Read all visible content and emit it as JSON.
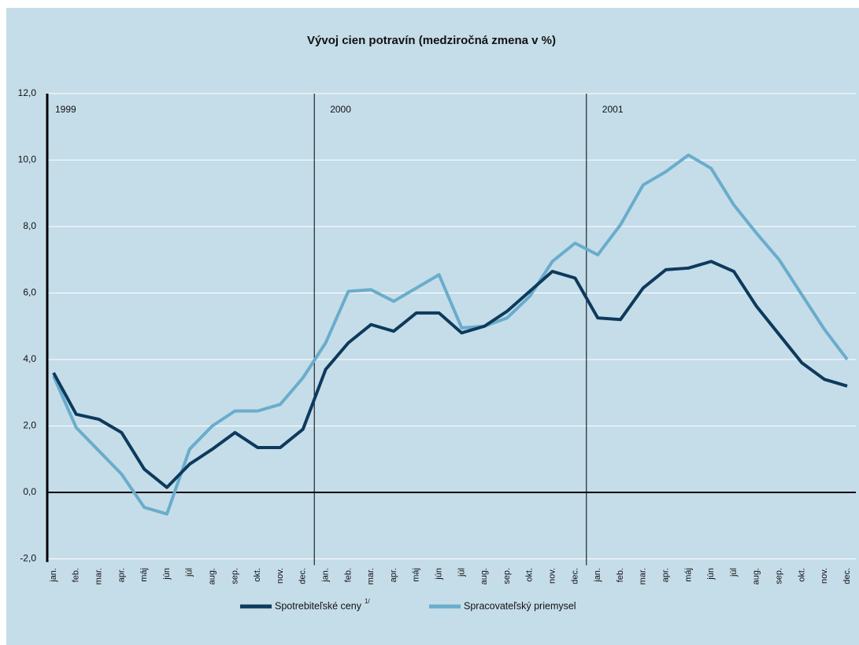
{
  "chart_data": {
    "type": "line",
    "title": "Vývoj cien potravín (medziročná zmena v %)",
    "categories": [
      "jan.",
      "feb.",
      "mar.",
      "apr.",
      "máj",
      "jún",
      "júl",
      "aug.",
      "sep.",
      "okt.",
      "nov.",
      "dec.",
      "jan.",
      "feb.",
      "mar.",
      "apr.",
      "máj",
      "jún",
      "júl",
      "aug.",
      "sep.",
      "okt.",
      "nov.",
      "dec.",
      "jan.",
      "feb.",
      "mar.",
      "apr.",
      "máj",
      "jún",
      "júl",
      "aug.",
      "sep.",
      "okt.",
      "nov.",
      "dec."
    ],
    "groups": [
      "1999",
      "2000",
      "2001"
    ],
    "series": [
      {
        "name": "Spotrebiteľské ceny",
        "footnote": "1/",
        "color": "#0d3a5c",
        "values": [
          3.6,
          2.35,
          2.2,
          1.8,
          0.7,
          0.15,
          0.85,
          1.3,
          1.8,
          1.35,
          1.35,
          1.9,
          3.7,
          4.5,
          5.05,
          4.85,
          5.4,
          5.4,
          4.8,
          5.0,
          5.45,
          6.05,
          6.65,
          6.45,
          5.25,
          5.2,
          6.15,
          6.7,
          6.75,
          6.95,
          6.65,
          5.6,
          4.75,
          3.9,
          3.4,
          3.2
        ]
      },
      {
        "name": "Spracovateľský priemysel",
        "color": "#6aaccc",
        "values": [
          3.5,
          1.95,
          1.25,
          0.55,
          -0.45,
          -0.65,
          1.3,
          2.0,
          2.45,
          2.45,
          2.65,
          3.45,
          4.5,
          6.05,
          6.1,
          5.75,
          6.15,
          6.55,
          4.95,
          5.0,
          5.25,
          5.9,
          6.95,
          7.5,
          7.15,
          8.05,
          9.25,
          9.65,
          10.15,
          9.75,
          8.65,
          7.8,
          7.0,
          5.95,
          4.9,
          4.0
        ]
      }
    ],
    "ylim": [
      -2,
      12
    ],
    "yticks": [
      {
        "value": -2,
        "label": "-2,0"
      },
      {
        "value": 0,
        "label": "0,0"
      },
      {
        "value": 2,
        "label": "2,0"
      },
      {
        "value": 4,
        "label": "4,0"
      },
      {
        "value": 6,
        "label": "6,0"
      },
      {
        "value": 8,
        "label": "8,0"
      },
      {
        "value": 10,
        "label": "10,0"
      },
      {
        "value": 12,
        "label": "12,0"
      }
    ],
    "grid": true
  }
}
